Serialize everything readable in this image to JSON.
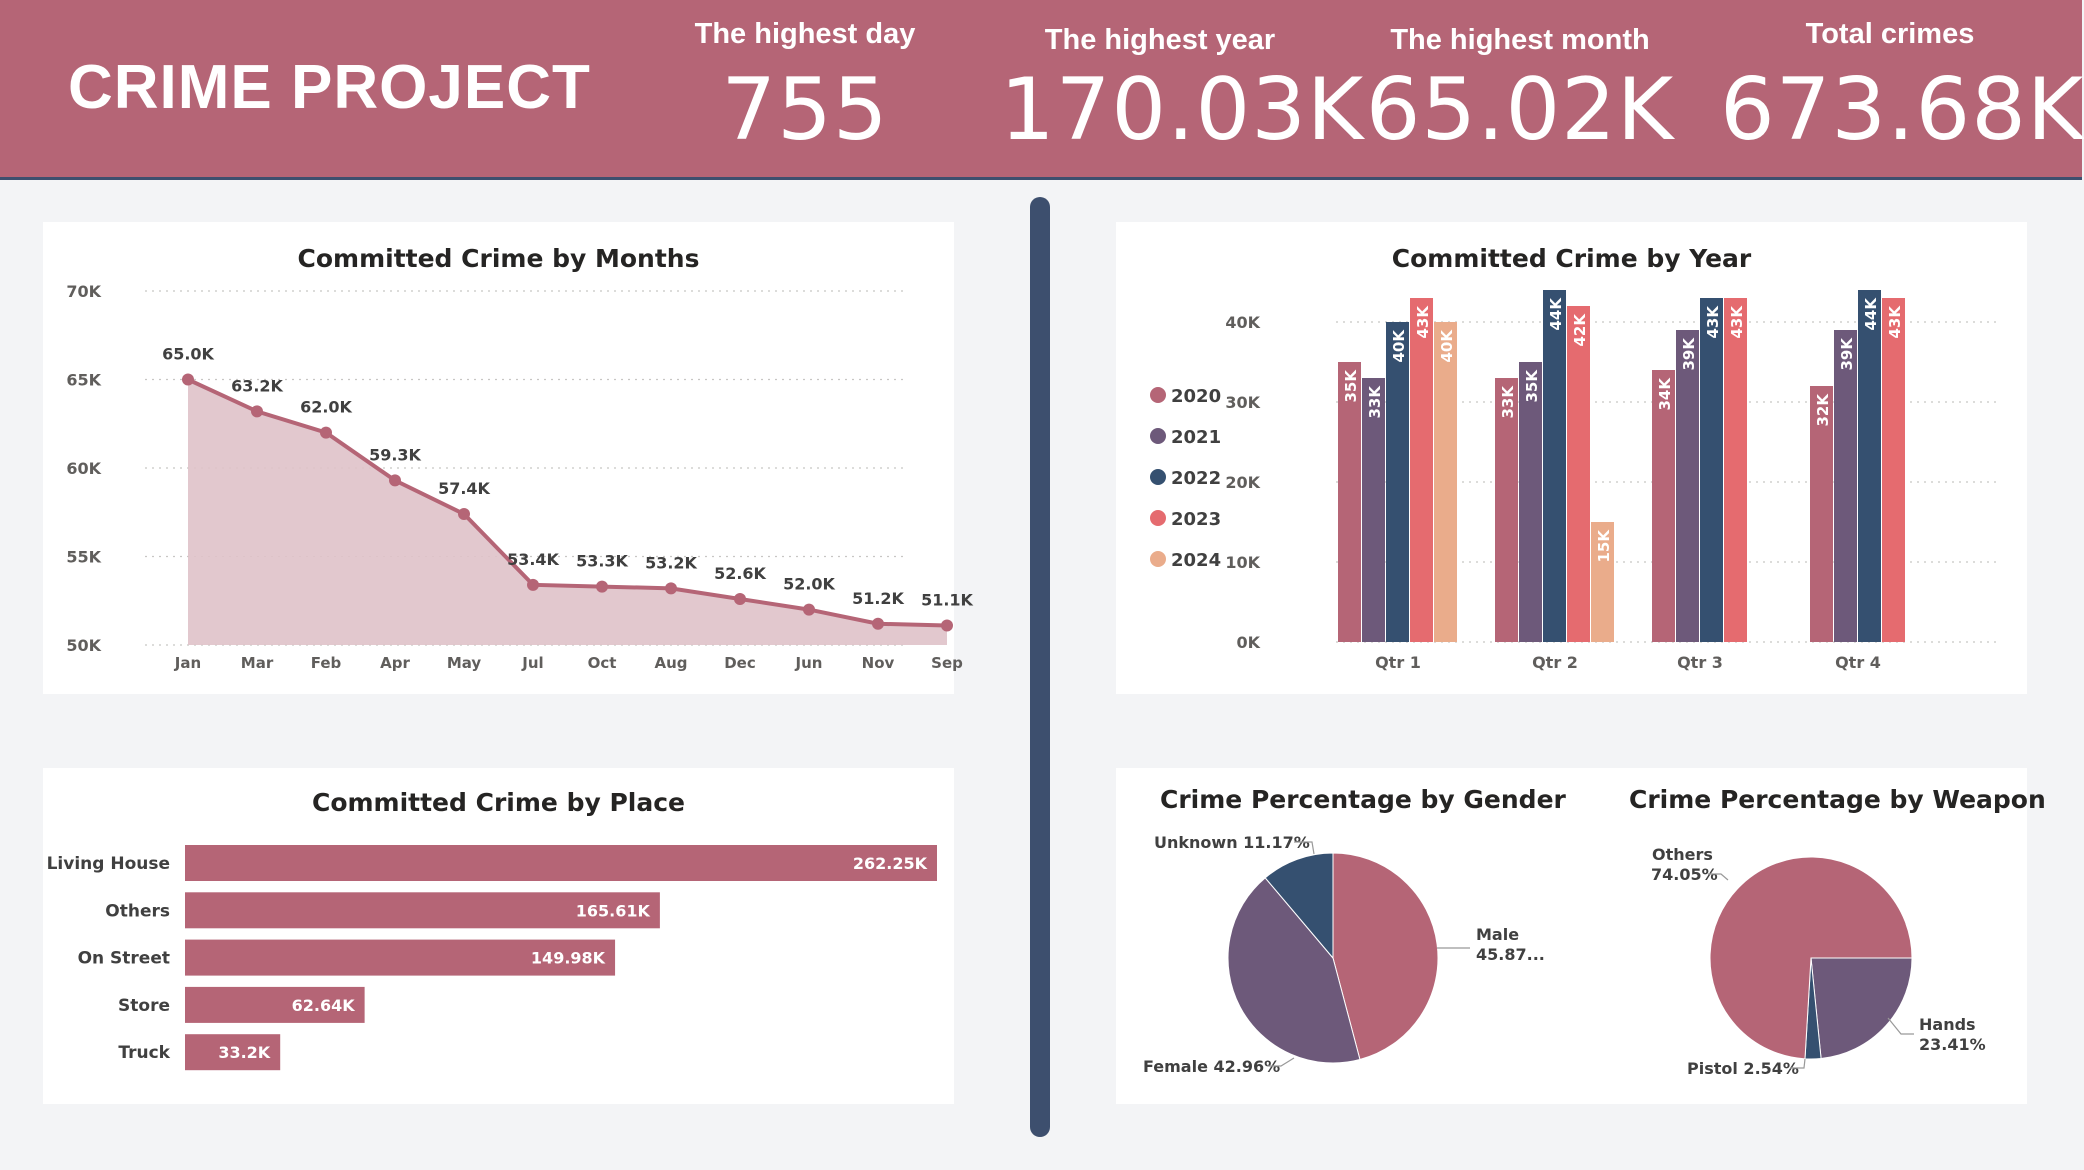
{
  "header": {
    "title": "CRIME PROJECT",
    "kpis": [
      {
        "label": "The highest day",
        "value": "755"
      },
      {
        "label": "The highest year",
        "value": "170.03K"
      },
      {
        "label": "The highest month",
        "value": "65.02K"
      },
      {
        "label": "Total crimes",
        "value": "673.68K"
      }
    ]
  },
  "colors": {
    "header_bg": "#b56576",
    "divider": "#3d4f6e",
    "series": [
      "#b56576",
      "#6d597a",
      "#355070",
      "#e56b6f",
      "#eaac8b"
    ],
    "area_fill": "#dfc2c9"
  },
  "chart_data": [
    {
      "type": "area",
      "title": "Committed Crime by Months",
      "categories": [
        "Jan",
        "Mar",
        "Feb",
        "Apr",
        "May",
        "Jul",
        "Oct",
        "Aug",
        "Dec",
        "Jun",
        "Nov",
        "Sep"
      ],
      "values": [
        65.0,
        63.2,
        62.0,
        59.3,
        57.4,
        53.4,
        53.3,
        53.2,
        52.6,
        52.0,
        51.2,
        51.1
      ],
      "data_labels": [
        "65.0K",
        "63.2K",
        "62.0K",
        "59.3K",
        "57.4K",
        "53.4K",
        "53.3K",
        "53.2K",
        "52.6K",
        "52.0K",
        "51.2K",
        "51.1K"
      ],
      "ylim": [
        50,
        70
      ],
      "yticks": [
        50,
        55,
        60,
        65,
        70
      ],
      "ytick_labels": [
        "50K",
        "55K",
        "60K",
        "65K",
        "70K"
      ],
      "grid": true
    },
    {
      "type": "bar",
      "title": "Committed Crime by Year",
      "categories": [
        "Qtr 1",
        "Qtr 2",
        "Qtr 3",
        "Qtr 4"
      ],
      "series": [
        {
          "name": "2020",
          "values": [
            35,
            33,
            34,
            32
          ]
        },
        {
          "name": "2021",
          "values": [
            33,
            35,
            39,
            39
          ]
        },
        {
          "name": "2022",
          "values": [
            40,
            44,
            43,
            44
          ]
        },
        {
          "name": "2023",
          "values": [
            43,
            42,
            43,
            43
          ]
        },
        {
          "name": "2024",
          "values": [
            40,
            15,
            null,
            null
          ]
        }
      ],
      "ylim": [
        0,
        45
      ],
      "yticks": [
        0,
        10,
        20,
        30,
        40
      ],
      "ytick_labels": [
        "0K",
        "10K",
        "20K",
        "30K",
        "40K"
      ],
      "label_suffix": "K",
      "legend": "left",
      "grid": true
    },
    {
      "type": "bar",
      "orientation": "horizontal",
      "title": "Committed Crime by Place",
      "categories": [
        "Living House",
        "Others",
        "On Street",
        "Store",
        "Truck"
      ],
      "values": [
        262.25,
        165.61,
        149.98,
        62.64,
        33.2
      ],
      "data_labels": [
        "262.25K",
        "165.61K",
        "149.98K",
        "62.64K",
        "33.2K"
      ]
    },
    {
      "type": "pie",
      "title": "Crime Percentage by Gender",
      "slices": [
        {
          "label": "Male",
          "value": 45.87,
          "text": "Male\n45.87..."
        },
        {
          "label": "Female",
          "value": 42.96,
          "text": "Female 42.96%"
        },
        {
          "label": "Unknown",
          "value": 11.17,
          "text": "Unknown 11.17%"
        }
      ]
    },
    {
      "type": "pie",
      "title": "Crime Percentage by Weapon",
      "slices": [
        {
          "label": "Hands",
          "value": 23.41,
          "text": "Hands\n23.41%"
        },
        {
          "label": "Pistol",
          "value": 2.54,
          "text": "Pistol 2.54%"
        },
        {
          "label": "Others",
          "value": 74.05,
          "text": "Others\n74.05%"
        }
      ]
    }
  ]
}
